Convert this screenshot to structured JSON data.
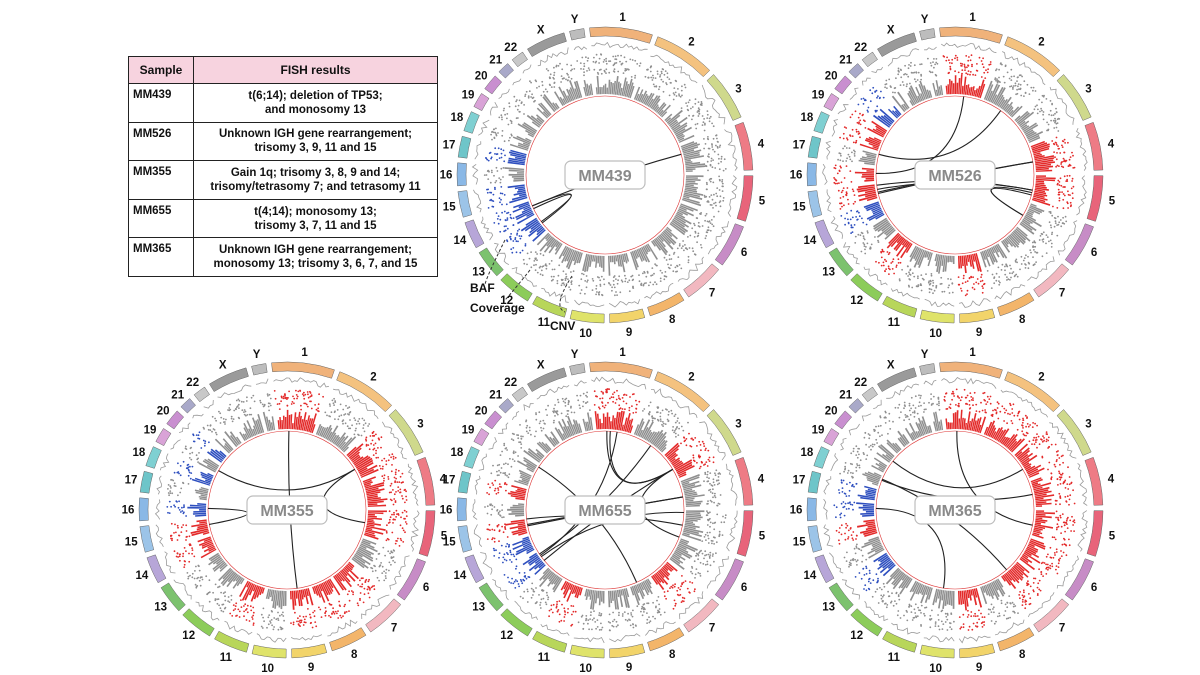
{
  "table": {
    "headers": [
      "Sample",
      "FISH results"
    ],
    "rows": [
      {
        "sample": "MM439",
        "lines": [
          "t(6;14); deletion of TP53;",
          "and monosomy 13"
        ]
      },
      {
        "sample": "MM526",
        "lines": [
          "Unknown IGH gene rearrangement;",
          "trisomy 3, 9, 11 and 15"
        ]
      },
      {
        "sample": "MM355",
        "lines": [
          "Gain 1q; trisomy 3, 8, 9 and 14;",
          "trisomy/tetrasomy 7; and tetrasomy 11"
        ]
      },
      {
        "sample": "MM655",
        "lines": [
          "t(4;14); monosomy 13;",
          "trisomy 3, 7, 11 and 15"
        ]
      },
      {
        "sample": "MM365",
        "lines": [
          "Unknown IGH gene rearrangement;",
          "monosomy 13; trisomy 3, 6, 7, and 15"
        ]
      }
    ]
  },
  "chromosomes": [
    {
      "label": "1",
      "color": "#f0b27a"
    },
    {
      "label": "2",
      "color": "#f4c27f"
    },
    {
      "label": "3",
      "color": "#cfd98c"
    },
    {
      "label": "4",
      "color": "#ee7b85"
    },
    {
      "label": "5",
      "color": "#e8647a"
    },
    {
      "label": "6",
      "color": "#c78cc6"
    },
    {
      "label": "7",
      "color": "#f2b8c0"
    },
    {
      "label": "8",
      "color": "#f3b56a"
    },
    {
      "label": "9",
      "color": "#f2d46a"
    },
    {
      "label": "10",
      "color": "#dfe36a"
    },
    {
      "label": "11",
      "color": "#b8d65a"
    },
    {
      "label": "12",
      "color": "#8ccc5a"
    },
    {
      "label": "13",
      "color": "#7cc26e"
    },
    {
      "label": "14",
      "color": "#b7a6d8"
    },
    {
      "label": "15",
      "color": "#9cc4e8"
    },
    {
      "label": "16",
      "color": "#8ab8e6"
    },
    {
      "label": "17",
      "color": "#6ec5c9"
    },
    {
      "label": "18",
      "color": "#7fd0d2"
    },
    {
      "label": "19",
      "color": "#d9a3d7"
    },
    {
      "label": "20",
      "color": "#c98fd0"
    },
    {
      "label": "21",
      "color": "#a9a9c9"
    },
    {
      "label": "22",
      "color": "#c8c8c8"
    },
    {
      "label": "X",
      "color": "#9a9a9a"
    },
    {
      "label": "Y",
      "color": "#bdbdbd"
    }
  ],
  "samples": [
    {
      "id": "MM439",
      "links": [
        [
          4,
          14
        ],
        [
          14,
          13
        ],
        [
          13,
          14
        ]
      ]
    },
    {
      "id": "MM526",
      "links": [
        [
          15,
          4
        ],
        [
          15,
          4
        ],
        [
          1,
          16
        ],
        [
          15,
          5
        ],
        [
          5,
          6
        ],
        [
          5,
          6
        ],
        [
          15,
          5
        ],
        [
          17,
          2
        ]
      ]
    },
    {
      "id": "MM355",
      "links": [
        [
          1,
          9
        ],
        [
          19,
          3
        ],
        [
          5,
          3
        ],
        [
          16,
          15
        ]
      ]
    },
    {
      "id": "MM655",
      "links": [
        [
          1,
          3
        ],
        [
          1,
          3
        ],
        [
          15,
          4
        ],
        [
          15,
          4
        ],
        [
          13,
          1
        ],
        [
          13,
          2
        ],
        [
          19,
          8
        ],
        [
          15,
          5
        ],
        [
          5,
          3
        ],
        [
          4,
          13
        ],
        [
          13,
          3
        ]
      ]
    },
    {
      "id": "MM365",
      "links": [
        [
          1,
          5
        ],
        [
          20,
          3
        ],
        [
          4,
          18
        ],
        [
          16,
          10
        ],
        [
          18,
          7
        ]
      ]
    }
  ],
  "annotations": {
    "baf": "BAF",
    "coverage": "Coverage",
    "cnv": "CNV"
  },
  "colors": {
    "gain": "#e32a2a",
    "loss": "#2e4fbf",
    "neutral": "#8f8f8f"
  }
}
